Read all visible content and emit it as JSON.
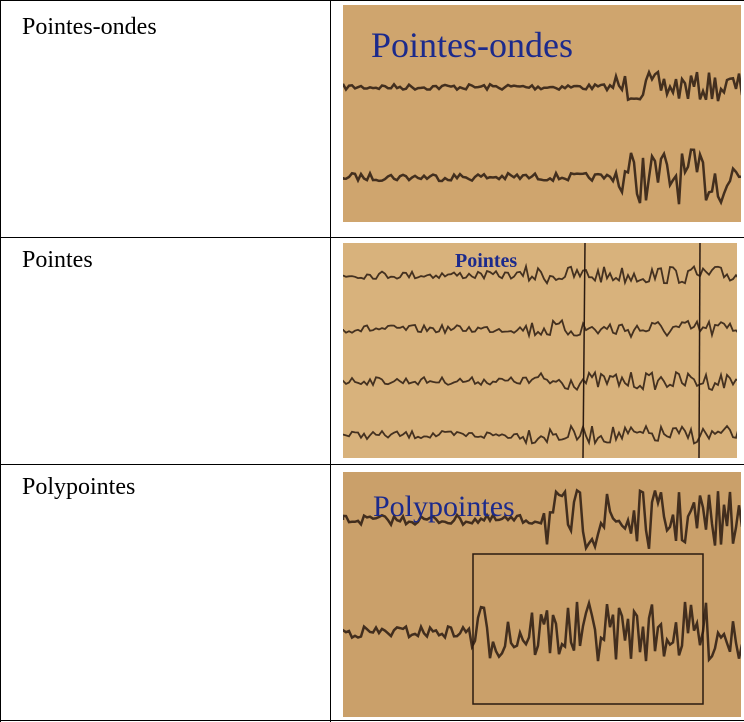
{
  "table": {
    "rows": [
      [
        "Pointes-ondes",
        "Pointes-ondes"
      ],
      [
        "Pointes",
        "Pointes"
      ],
      [
        "Polypointes",
        "Polypointes"
      ]
    ]
  }
}
